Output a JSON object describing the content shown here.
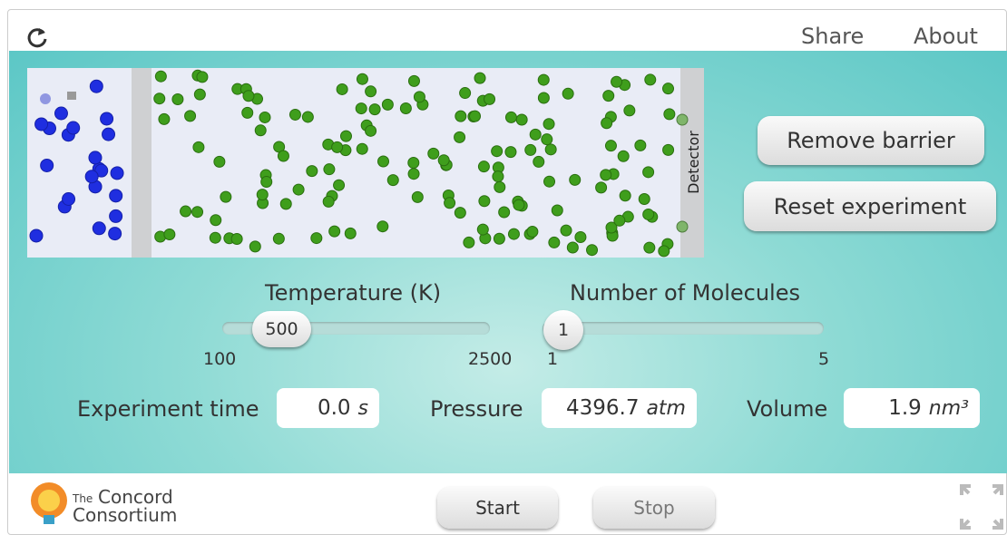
{
  "toolbar": {
    "share": "Share",
    "about": "About"
  },
  "simulation": {
    "detector": "Detector"
  },
  "buttons": {
    "remove_barrier": "Remove barrier",
    "reset_experiment": "Reset experiment",
    "start": "Start",
    "stop": "Stop"
  },
  "temperature_slider": {
    "label": "Temperature (K)",
    "value": "500",
    "min": "100",
    "max": "2500"
  },
  "molecules_slider": {
    "label": "Number of Molecules",
    "value": "1",
    "min": "1",
    "max": "5"
  },
  "readouts": {
    "time": {
      "label": "Experiment time",
      "value": "0.0",
      "unit": "s"
    },
    "pressure": {
      "label": "Pressure",
      "value": "4396.7",
      "unit": "atm"
    },
    "volume": {
      "label": "Volume",
      "value": "1.9",
      "unit": "nm³"
    }
  },
  "logo": {
    "the": "The",
    "line1": "Concord",
    "line2": "Consortium"
  }
}
